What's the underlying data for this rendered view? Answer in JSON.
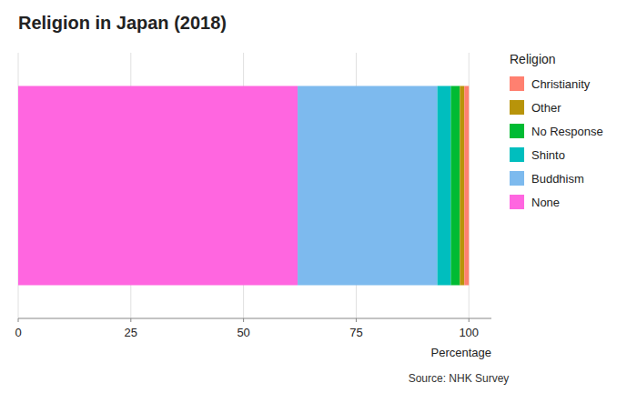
{
  "chart_data": {
    "type": "bar",
    "orientation": "horizontal",
    "stacked": true,
    "title": "Religion in Japan (2018)",
    "x_label": "Percentage",
    "source": "Source: NHK Survey",
    "legend_title": "Religion",
    "categories": [
      null
    ],
    "series": [
      {
        "name": "None",
        "color": "#FF66E0",
        "values": [
          62
        ]
      },
      {
        "name": "Buddhism",
        "color": "#7DBAEE",
        "values": [
          31
        ]
      },
      {
        "name": "Shinto",
        "color": "#00BEBE",
        "values": [
          3
        ]
      },
      {
        "name": "No Response",
        "color": "#00BB33",
        "values": [
          2
        ]
      },
      {
        "name": "Other",
        "color": "#B8940A",
        "values": [
          1
        ]
      },
      {
        "name": "Christianity",
        "color": "#FF8070",
        "values": [
          1
        ]
      }
    ],
    "xlim": [
      0,
      105
    ],
    "xticks": [
      0,
      25,
      50,
      75,
      100
    ],
    "grid": true,
    "legend": "right",
    "tick_labels": "x"
  }
}
